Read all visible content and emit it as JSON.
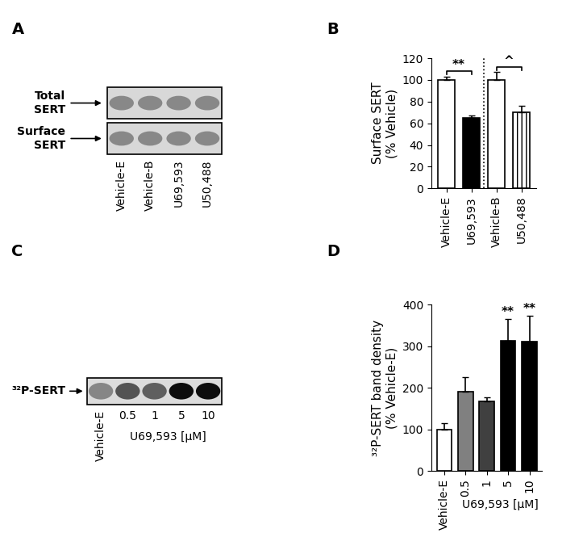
{
  "panel_labels": [
    "A",
    "B",
    "C",
    "D"
  ],
  "blot_A": {
    "rows": [
      "Total\nSERT",
      "Surface\nSERT"
    ],
    "lanes": [
      "Vehicle-E",
      "Vehicle-B",
      "U69,593",
      "U50,488"
    ]
  },
  "blot_C": {
    "rows": [
      "³²P-SERT"
    ],
    "lanes": [
      "Vehicle-E",
      "0.5",
      "1",
      "5",
      "10"
    ],
    "group_label": "U69,593 [µM]"
  },
  "chart_data": [
    {
      "type": "bar",
      "categories": [
        "Vehicle-E",
        "U69,593",
        "Vehicle-B",
        "U50,488"
      ],
      "values": [
        100,
        65,
        100,
        70
      ],
      "error": [
        3,
        2,
        7,
        6
      ],
      "colors": [
        "#ffffff",
        "#000000",
        "#ffffff",
        "#ffffff"
      ],
      "y_label": "Surface SERT\n(% Vehicle)",
      "ylim": [
        0,
        120
      ],
      "yticks": [
        0,
        20,
        40,
        60,
        80,
        100,
        120
      ],
      "annotations": [
        {
          "text": "**",
          "from": 0,
          "to": 1
        },
        {
          "text": "^",
          "from": 2,
          "to": 3
        }
      ]
    },
    {
      "type": "bar",
      "categories": [
        "Vehicle-E",
        "0.5",
        "1",
        "5",
        "10"
      ],
      "values": [
        100,
        190,
        168,
        313,
        312
      ],
      "error": [
        15,
        35,
        10,
        52,
        62
      ],
      "colors": [
        "#ffffff",
        "#808080",
        "#404040",
        "#000000",
        "#000000"
      ],
      "y_label": "³²P-SERT band density\n(% Vehicle-E)",
      "x_label": "U69,593 [µM]",
      "ylim": [
        0,
        400
      ],
      "yticks": [
        0,
        100,
        200,
        300,
        400
      ],
      "annotations": [
        {
          "text": "**",
          "index": 3
        },
        {
          "text": "**",
          "index": 4
        }
      ]
    }
  ]
}
